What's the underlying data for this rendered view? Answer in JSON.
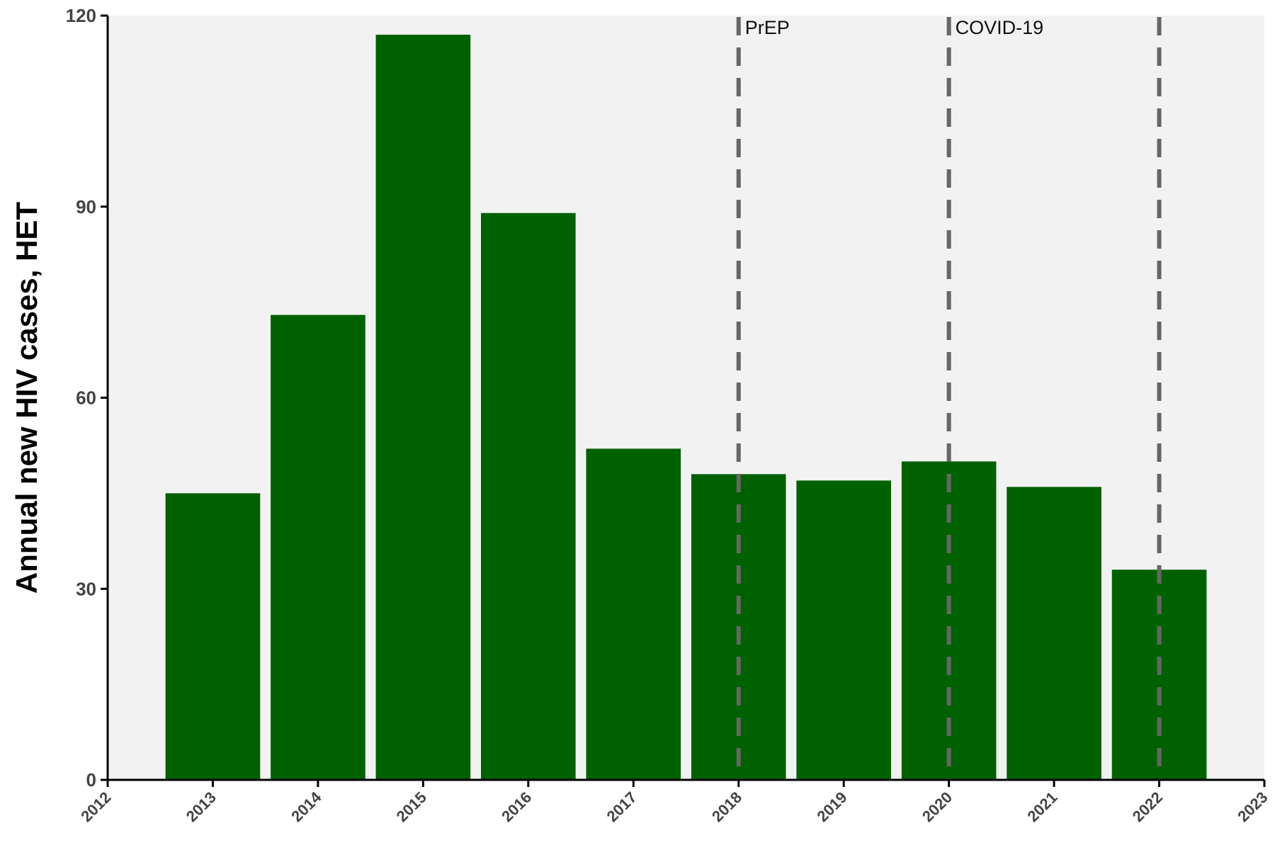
{
  "chart_data": {
    "type": "bar",
    "title": "",
    "xlabel": "",
    "ylabel": "Annual new HIV cases, HET",
    "x": [
      2013,
      2014,
      2015,
      2016,
      2017,
      2018,
      2019,
      2020,
      2021,
      2022
    ],
    "values": [
      45,
      73,
      117,
      89,
      52,
      48,
      47,
      50,
      46,
      33
    ],
    "xlim": [
      2012,
      2023
    ],
    "ylim": [
      0,
      120
    ],
    "xticks": [
      2012,
      2013,
      2014,
      2015,
      2016,
      2017,
      2018,
      2019,
      2020,
      2021,
      2022,
      2023
    ],
    "yticks": [
      0,
      30,
      60,
      90,
      120
    ],
    "xtick_labels": [
      "2012",
      "2013",
      "2014",
      "2015",
      "2016",
      "2017",
      "2018",
      "2019",
      "2020",
      "2021",
      "2022",
      "2023"
    ],
    "ytick_labels": [
      "0",
      "30",
      "60",
      "90",
      "120"
    ],
    "grid": false,
    "legend": "none",
    "annotations": [
      {
        "x": 2018,
        "label": "PrEP",
        "style": "dashed-vertical-line"
      },
      {
        "x": 2020,
        "label": "COVID-19",
        "style": "dashed-vertical-line"
      },
      {
        "x": 2022,
        "label": "",
        "style": "dashed-vertical-line"
      }
    ],
    "colors": {
      "bar": "#006100",
      "panel_background": "#f2f2f2",
      "axis": "#000000",
      "annotation_line": "#666666"
    }
  }
}
